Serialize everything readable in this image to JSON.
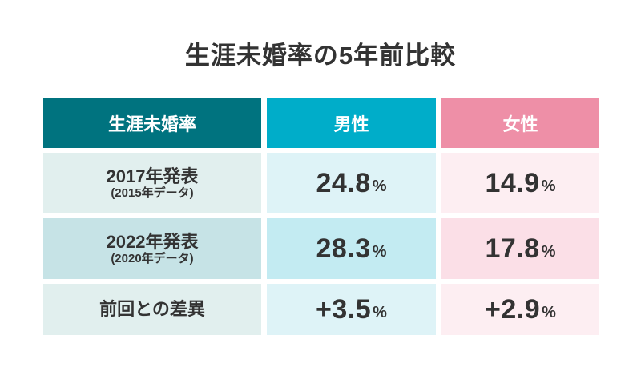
{
  "title": "生涯未婚率の5年前比較",
  "colors": {
    "title_text": "#333333",
    "header_text": "#ffffff",
    "body_text": "#333333",
    "header_label_bg": "#00737f",
    "header_male_bg": "#00adc9",
    "header_female_bg": "#ee8fa7"
  },
  "table": {
    "header": {
      "label": "生涯未婚率",
      "male": "男性",
      "female": "女性"
    },
    "rows": [
      {
        "label": "2017年発表",
        "sublabel": "(2015年データ)",
        "male_value": "24.8",
        "female_value": "14.9",
        "unit": "%",
        "label_bg": "#e1efee",
        "male_bg": "#def3f7",
        "female_bg": "#fdeef2"
      },
      {
        "label": "2022年発表",
        "sublabel": "(2020年データ)",
        "male_value": "28.3",
        "female_value": "17.8",
        "unit": "%",
        "label_bg": "#c6e3e6",
        "male_bg": "#c3ebf2",
        "female_bg": "#fbdfe7"
      },
      {
        "label": "前回との差異",
        "sublabel": "",
        "male_value": "+3.5",
        "female_value": "+2.9",
        "unit": "%",
        "label_bg": "#e1efee",
        "male_bg": "#def3f7",
        "female_bg": "#fdeef2"
      }
    ]
  },
  "chart_data": {
    "type": "table",
    "title": "生涯未婚率の5年前比較",
    "columns": [
      "生涯未婚率",
      "男性",
      "女性"
    ],
    "rows": [
      [
        "2017年発表 (2015年データ)",
        "24.8%",
        "14.9%"
      ],
      [
        "2022年発表 (2020年データ)",
        "28.3%",
        "17.8%"
      ],
      [
        "前回との差異",
        "+3.5%",
        "+2.9%"
      ]
    ],
    "series": [
      {
        "name": "男性",
        "categories": [
          "2017年発表 (2015年データ)",
          "2022年発表 (2020年データ)"
        ],
        "values": [
          24.8,
          28.3
        ],
        "difference": 3.5
      },
      {
        "name": "女性",
        "categories": [
          "2017年発表 (2015年データ)",
          "2022年発表 (2020年データ)"
        ],
        "values": [
          14.9,
          17.8
        ],
        "difference": 2.9
      }
    ],
    "unit": "%"
  }
}
